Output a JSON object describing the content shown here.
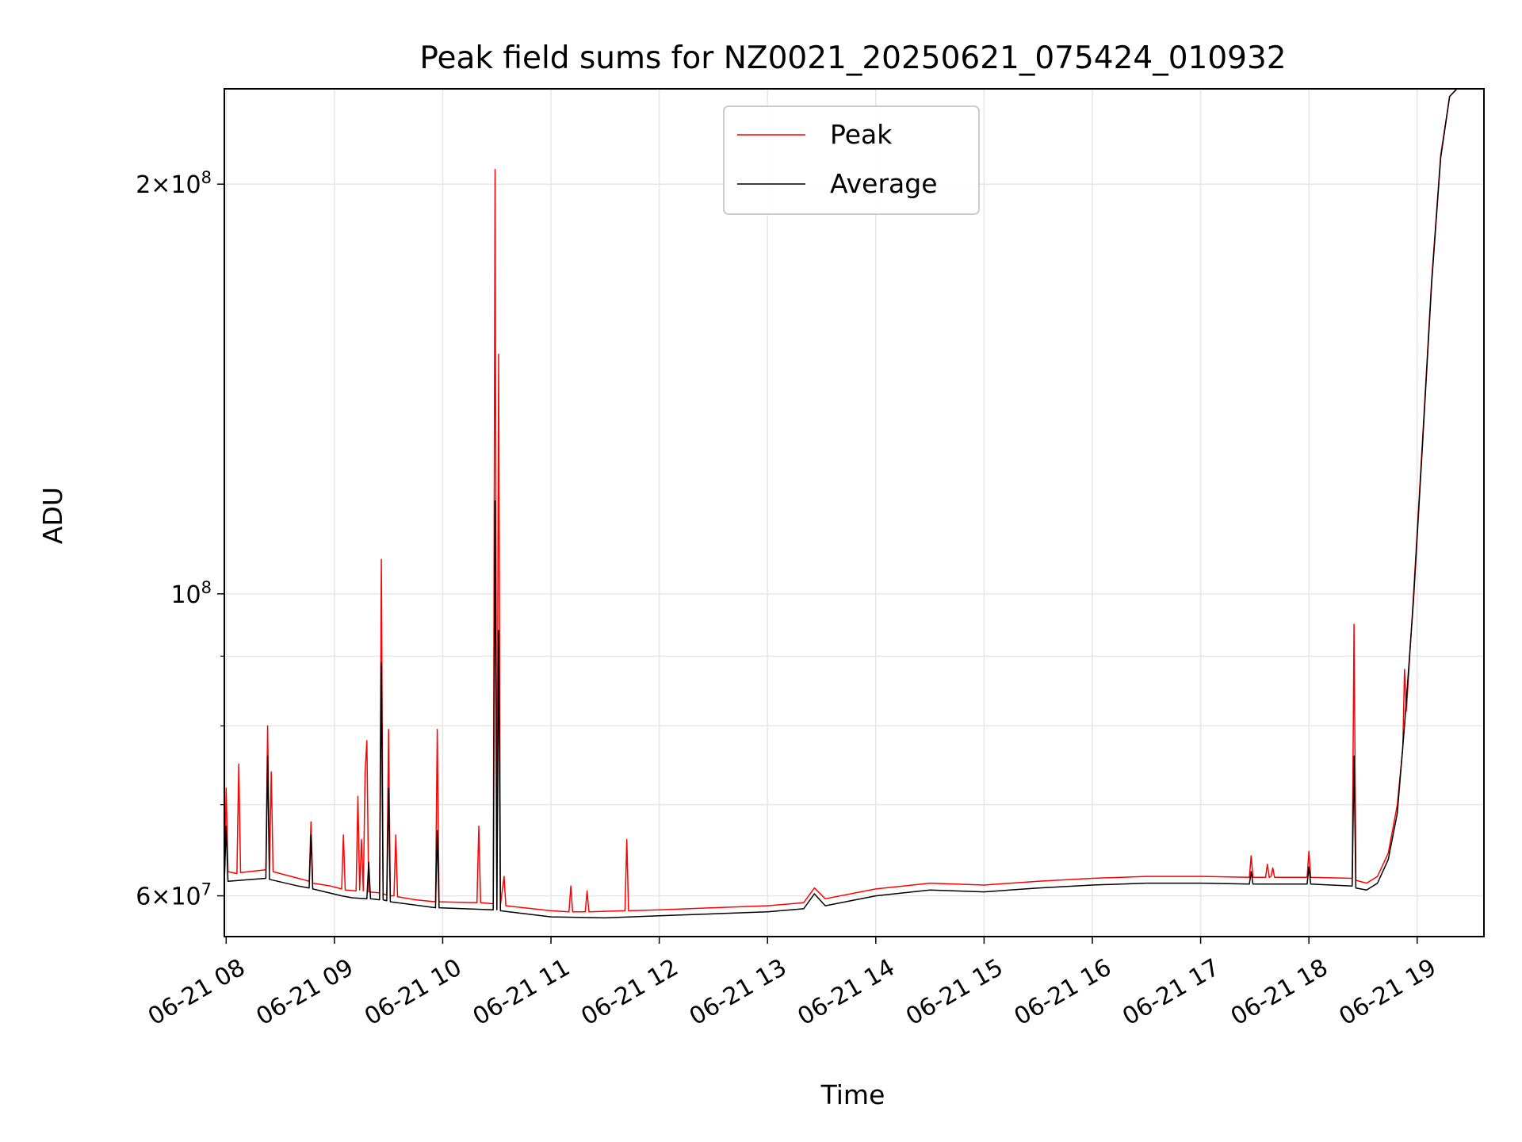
{
  "chart_data": {
    "type": "line",
    "title": "Peak field sums for NZ0021_20250621_075424_010932",
    "xlabel": "Time",
    "ylabel": "ADU",
    "y_scale": "log",
    "grid": true,
    "legend_position": "top-center",
    "xlim": [
      "2025-06-21T07:59",
      "2025-06-21T19:37"
    ],
    "ylim": [
      56000000,
      235000000
    ],
    "x_ticks": [
      {
        "t": "2025-06-21T08:00",
        "label": "06-21 08"
      },
      {
        "t": "2025-06-21T09:00",
        "label": "06-21 09"
      },
      {
        "t": "2025-06-21T10:00",
        "label": "06-21 10"
      },
      {
        "t": "2025-06-21T11:00",
        "label": "06-21 11"
      },
      {
        "t": "2025-06-21T12:00",
        "label": "06-21 12"
      },
      {
        "t": "2025-06-21T13:00",
        "label": "06-21 13"
      },
      {
        "t": "2025-06-21T14:00",
        "label": "06-21 14"
      },
      {
        "t": "2025-06-21T15:00",
        "label": "06-21 15"
      },
      {
        "t": "2025-06-21T16:00",
        "label": "06-21 16"
      },
      {
        "t": "2025-06-21T17:00",
        "label": "06-21 17"
      },
      {
        "t": "2025-06-21T18:00",
        "label": "06-21 18"
      },
      {
        "t": "2025-06-21T19:00",
        "label": "06-21 19"
      }
    ],
    "y_major_ticks": [
      {
        "value": 60000000,
        "mantissa": "6",
        "exponent": "7"
      },
      {
        "value": 100000000,
        "mantissa": "",
        "exponent": "8"
      },
      {
        "value": 200000000,
        "mantissa": "2",
        "exponent": "8"
      }
    ],
    "y_minor_ticks": [
      70000000,
      80000000,
      90000000
    ],
    "series": [
      {
        "name": "Peak",
        "color": "#ff0000",
        "points": [
          [
            "2025-06-21T07:59",
            62500000
          ],
          [
            "2025-06-21T08:00",
            72000000
          ],
          [
            "2025-06-21T08:01",
            62500000
          ],
          [
            "2025-06-21T08:06",
            62300000
          ],
          [
            "2025-06-21T08:07",
            75000000
          ],
          [
            "2025-06-21T08:08",
            62400000
          ],
          [
            "2025-06-21T08:22",
            62700000
          ],
          [
            "2025-06-21T08:23",
            80000000
          ],
          [
            "2025-06-21T08:24",
            62600000
          ],
          [
            "2025-06-21T08:25",
            74000000
          ],
          [
            "2025-06-21T08:26",
            62500000
          ],
          [
            "2025-06-21T08:40",
            61800000
          ],
          [
            "2025-06-21T08:46",
            61500000
          ],
          [
            "2025-06-21T08:47",
            68000000
          ],
          [
            "2025-06-21T08:48",
            61300000
          ],
          [
            "2025-06-21T08:58",
            61000000
          ],
          [
            "2025-06-21T09:04",
            60700000
          ],
          [
            "2025-06-21T09:05",
            66500000
          ],
          [
            "2025-06-21T09:06",
            60600000
          ],
          [
            "2025-06-21T09:12",
            60500000
          ],
          [
            "2025-06-21T09:13",
            71000000
          ],
          [
            "2025-06-21T09:14",
            60600000
          ],
          [
            "2025-06-21T09:15",
            66000000
          ],
          [
            "2025-06-21T09:16",
            60500000
          ],
          [
            "2025-06-21T09:17",
            74000000
          ],
          [
            "2025-06-21T09:18",
            78000000
          ],
          [
            "2025-06-21T09:19",
            60400000
          ],
          [
            "2025-06-21T09:25",
            60300000
          ],
          [
            "2025-06-21T09:26",
            106000000
          ],
          [
            "2025-06-21T09:27",
            60200000
          ],
          [
            "2025-06-21T09:29",
            60100000
          ],
          [
            "2025-06-21T09:30",
            79500000
          ],
          [
            "2025-06-21T09:31",
            60000000
          ],
          [
            "2025-06-21T09:33",
            60000000
          ],
          [
            "2025-06-21T09:34",
            66500000
          ],
          [
            "2025-06-21T09:35",
            59900000
          ],
          [
            "2025-06-21T09:45",
            59600000
          ],
          [
            "2025-06-21T09:56",
            59400000
          ],
          [
            "2025-06-21T09:57",
            79500000
          ],
          [
            "2025-06-21T09:58",
            59400000
          ],
          [
            "2025-06-21T10:19",
            59300000
          ],
          [
            "2025-06-21T10:20",
            67500000
          ],
          [
            "2025-06-21T10:21",
            59300000
          ],
          [
            "2025-06-21T10:28",
            59200000
          ],
          [
            "2025-06-21T10:29",
            205000000
          ],
          [
            "2025-06-21T10:30",
            59200000
          ],
          [
            "2025-06-21T10:31",
            150000000
          ],
          [
            "2025-06-21T10:32",
            59100000
          ],
          [
            "2025-06-21T10:34",
            62000000
          ],
          [
            "2025-06-21T10:35",
            59000000
          ],
          [
            "2025-06-21T10:50",
            58700000
          ],
          [
            "2025-06-21T11:00",
            58500000
          ],
          [
            "2025-06-21T11:10",
            58400000
          ],
          [
            "2025-06-21T11:11",
            61000000
          ],
          [
            "2025-06-21T11:12",
            58400000
          ],
          [
            "2025-06-21T11:19",
            58400000
          ],
          [
            "2025-06-21T11:20",
            60500000
          ],
          [
            "2025-06-21T11:21",
            58400000
          ],
          [
            "2025-06-21T11:41",
            58500000
          ],
          [
            "2025-06-21T11:42",
            66000000
          ],
          [
            "2025-06-21T11:43",
            58500000
          ],
          [
            "2025-06-21T12:00",
            58600000
          ],
          [
            "2025-06-21T12:30",
            58800000
          ],
          [
            "2025-06-21T13:00",
            59000000
          ],
          [
            "2025-06-21T13:20",
            59300000
          ],
          [
            "2025-06-21T13:26",
            60800000
          ],
          [
            "2025-06-21T13:32",
            59700000
          ],
          [
            "2025-06-21T14:00",
            60700000
          ],
          [
            "2025-06-21T14:30",
            61300000
          ],
          [
            "2025-06-21T15:00",
            61100000
          ],
          [
            "2025-06-21T15:30",
            61500000
          ],
          [
            "2025-06-21T16:00",
            61800000
          ],
          [
            "2025-06-21T16:30",
            62000000
          ],
          [
            "2025-06-21T17:00",
            62000000
          ],
          [
            "2025-06-21T17:27",
            61900000
          ],
          [
            "2025-06-21T17:28",
            64200000
          ],
          [
            "2025-06-21T17:29",
            61900000
          ],
          [
            "2025-06-21T17:36",
            61900000
          ],
          [
            "2025-06-21T17:37",
            63300000
          ],
          [
            "2025-06-21T17:38",
            61900000
          ],
          [
            "2025-06-21T17:39",
            62000000
          ],
          [
            "2025-06-21T17:40",
            62900000
          ],
          [
            "2025-06-21T17:41",
            61900000
          ],
          [
            "2025-06-21T17:59",
            61900000
          ],
          [
            "2025-06-21T18:00",
            64700000
          ],
          [
            "2025-06-21T18:01",
            61900000
          ],
          [
            "2025-06-21T18:24",
            61800000
          ],
          [
            "2025-06-21T18:25",
            95000000
          ],
          [
            "2025-06-21T18:26",
            61600000
          ],
          [
            "2025-06-21T18:32",
            61300000
          ],
          [
            "2025-06-21T18:38",
            62000000
          ],
          [
            "2025-06-21T18:44",
            64500000
          ],
          [
            "2025-06-21T18:49",
            70000000
          ],
          [
            "2025-06-21T18:52",
            77000000
          ],
          [
            "2025-06-21T18:53",
            88000000
          ],
          [
            "2025-06-21T18:54",
            82000000
          ],
          [
            "2025-06-21T18:58",
            100000000
          ],
          [
            "2025-06-21T19:03",
            130000000
          ],
          [
            "2025-06-21T19:08",
            170000000
          ],
          [
            "2025-06-21T19:13",
            210000000
          ],
          [
            "2025-06-21T19:18",
            232000000
          ],
          [
            "2025-06-21T19:22",
            235000000
          ],
          [
            "2025-06-21T19:37",
            235000000
          ]
        ]
      },
      {
        "name": "Average",
        "color": "#000000",
        "points": [
          [
            "2025-06-21T07:59",
            61500000
          ],
          [
            "2025-06-21T08:00",
            67500000
          ],
          [
            "2025-06-21T08:01",
            61500000
          ],
          [
            "2025-06-21T08:22",
            61800000
          ],
          [
            "2025-06-21T08:23",
            76000000
          ],
          [
            "2025-06-21T08:24",
            61700000
          ],
          [
            "2025-06-21T08:40",
            61000000
          ],
          [
            "2025-06-21T08:46",
            60800000
          ],
          [
            "2025-06-21T08:47",
            66500000
          ],
          [
            "2025-06-21T08:48",
            60700000
          ],
          [
            "2025-06-21T09:04",
            60000000
          ],
          [
            "2025-06-21T09:10",
            59800000
          ],
          [
            "2025-06-21T09:18",
            59700000
          ],
          [
            "2025-06-21T09:19",
            63500000
          ],
          [
            "2025-06-21T09:20",
            59700000
          ],
          [
            "2025-06-21T09:25",
            59600000
          ],
          [
            "2025-06-21T09:26",
            89000000
          ],
          [
            "2025-06-21T09:27",
            59600000
          ],
          [
            "2025-06-21T09:29",
            59500000
          ],
          [
            "2025-06-21T09:30",
            72000000
          ],
          [
            "2025-06-21T09:31",
            59400000
          ],
          [
            "2025-06-21T09:56",
            58800000
          ],
          [
            "2025-06-21T09:57",
            67000000
          ],
          [
            "2025-06-21T09:58",
            58800000
          ],
          [
            "2025-06-21T10:28",
            58600000
          ],
          [
            "2025-06-21T10:29",
            117000000
          ],
          [
            "2025-06-21T10:30",
            58600000
          ],
          [
            "2025-06-21T10:31",
            94000000
          ],
          [
            "2025-06-21T10:32",
            58500000
          ],
          [
            "2025-06-21T11:00",
            57900000
          ],
          [
            "2025-06-21T11:30",
            57800000
          ],
          [
            "2025-06-21T12:00",
            58000000
          ],
          [
            "2025-06-21T12:30",
            58200000
          ],
          [
            "2025-06-21T13:00",
            58400000
          ],
          [
            "2025-06-21T13:20",
            58700000
          ],
          [
            "2025-06-21T13:26",
            60200000
          ],
          [
            "2025-06-21T13:32",
            59000000
          ],
          [
            "2025-06-21T14:00",
            60000000
          ],
          [
            "2025-06-21T14:30",
            60600000
          ],
          [
            "2025-06-21T15:00",
            60400000
          ],
          [
            "2025-06-21T15:30",
            60800000
          ],
          [
            "2025-06-21T16:00",
            61100000
          ],
          [
            "2025-06-21T16:30",
            61300000
          ],
          [
            "2025-06-21T17:00",
            61300000
          ],
          [
            "2025-06-21T17:27",
            61200000
          ],
          [
            "2025-06-21T17:28",
            62500000
          ],
          [
            "2025-06-21T17:29",
            61200000
          ],
          [
            "2025-06-21T17:59",
            61200000
          ],
          [
            "2025-06-21T18:00",
            63000000
          ],
          [
            "2025-06-21T18:01",
            61200000
          ],
          [
            "2025-06-21T18:24",
            61000000
          ],
          [
            "2025-06-21T18:25",
            76000000
          ],
          [
            "2025-06-21T18:26",
            60800000
          ],
          [
            "2025-06-21T18:32",
            60600000
          ],
          [
            "2025-06-21T18:38",
            61300000
          ],
          [
            "2025-06-21T18:44",
            63800000
          ],
          [
            "2025-06-21T18:49",
            69000000
          ],
          [
            "2025-06-21T18:53",
            80000000
          ],
          [
            "2025-06-21T18:58",
            99000000
          ],
          [
            "2025-06-21T19:03",
            129000000
          ],
          [
            "2025-06-21T19:08",
            169000000
          ],
          [
            "2025-06-21T19:13",
            209000000
          ],
          [
            "2025-06-21T19:18",
            232000000
          ],
          [
            "2025-06-21T19:22",
            235000000
          ],
          [
            "2025-06-21T19:37",
            235000000
          ]
        ]
      }
    ]
  }
}
